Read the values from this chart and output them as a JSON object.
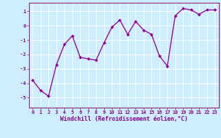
{
  "x": [
    0,
    1,
    2,
    3,
    4,
    5,
    6,
    7,
    8,
    9,
    10,
    11,
    12,
    13,
    14,
    15,
    16,
    17,
    18,
    19,
    20,
    21,
    22,
    23
  ],
  "y": [
    -3.8,
    -4.5,
    -4.9,
    -2.7,
    -1.3,
    -0.7,
    -2.2,
    -2.3,
    -2.4,
    -1.2,
    -0.1,
    0.4,
    -0.6,
    0.3,
    -0.3,
    -0.6,
    -2.1,
    -2.8,
    0.7,
    1.2,
    1.1,
    0.8,
    1.1,
    1.1
  ],
  "line_color": "#990099",
  "marker": "D",
  "marker_size": 2.0,
  "bg_color": "#cceeff",
  "grid_color": "#ffffff",
  "xlabel": "Windchill (Refroidissement éolien,°C)",
  "xlim": [
    -0.5,
    23.5
  ],
  "ylim": [
    -5.7,
    1.6
  ],
  "yticks": [
    -5,
    -4,
    -3,
    -2,
    -1,
    0,
    1
  ],
  "xticks": [
    0,
    1,
    2,
    3,
    4,
    5,
    6,
    7,
    8,
    9,
    10,
    11,
    12,
    13,
    14,
    15,
    16,
    17,
    18,
    19,
    20,
    21,
    22,
    23
  ],
  "tick_color": "#880088",
  "tick_fontsize": 5.0,
  "xlabel_fontsize": 6.0,
  "linewidth": 1.0
}
